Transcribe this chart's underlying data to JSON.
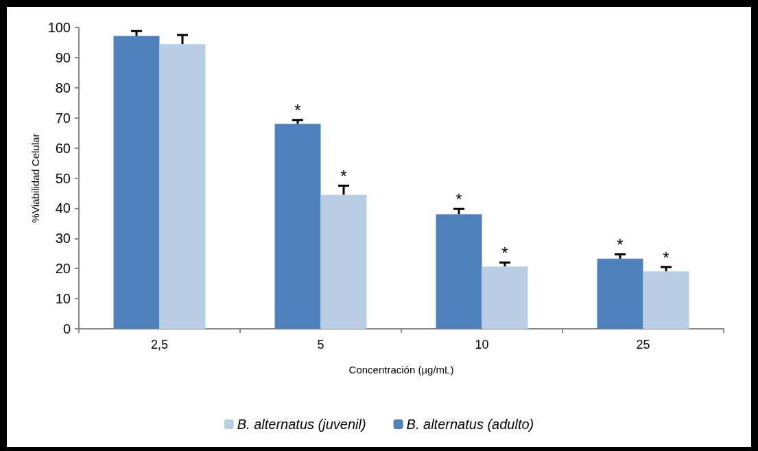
{
  "chart_data": {
    "type": "bar",
    "xlabel": "Concentración (µg/mL)",
    "ylabel": "%Viabilidad Celular",
    "categories": [
      "2,5",
      "5",
      "10",
      "25"
    ],
    "series": [
      {
        "name": "B. alternatus (adulto)",
        "color": "#4f81bd",
        "values": [
          97.2,
          68,
          38,
          23.3
        ],
        "errors": [
          [
            97.2,
            98.8
          ],
          [
            68,
            69.3
          ],
          [
            38,
            39.8
          ],
          [
            23.3,
            24.7
          ]
        ]
      },
      {
        "name": "B. alternatus (juvenil)",
        "color": "#b9cde5",
        "values": [
          94.5,
          44.5,
          20.7,
          19.1
        ],
        "errors": [
          [
            94.5,
            97.5
          ],
          [
            44.5,
            47.5
          ],
          [
            20.7,
            22
          ],
          [
            19.1,
            20.5
          ]
        ]
      }
    ],
    "annotations": [
      {
        "text": "*",
        "x": "5",
        "y": 68
      },
      {
        "text": "*",
        "x": "5",
        "y": 44.5
      },
      {
        "text": "*",
        "x": "10",
        "y": 38
      },
      {
        "text": "*",
        "x": "10",
        "y": 20.7
      },
      {
        "text": "*",
        "x": "25",
        "y": 23.3
      },
      {
        "text": "*",
        "x": "25",
        "y": 19.1
      }
    ],
    "ylim": [
      0,
      100
    ],
    "yticks": [
      0,
      10,
      20,
      30,
      40,
      50,
      60,
      70,
      80,
      90,
      100
    ],
    "legend": "bottom"
  }
}
